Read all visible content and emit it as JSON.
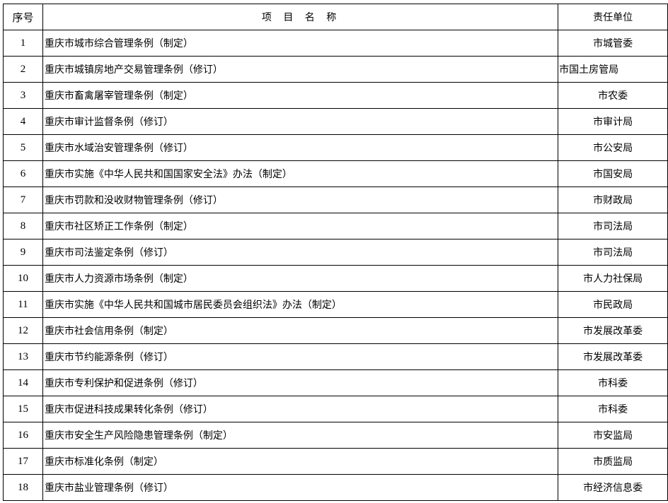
{
  "header": {
    "index": "序号",
    "name": "项 目 名 称",
    "unit": "责任单位"
  },
  "rows": [
    {
      "index": "1",
      "name": "重庆市城市综合管理条例（制定）",
      "unit": "市城管委"
    },
    {
      "index": "2",
      "name": "重庆市城镇房地产交易管理条例（修订）",
      "unit": "市国土房管局"
    },
    {
      "index": "3",
      "name": "重庆市畜禽屠宰管理条例（制定）",
      "unit": "市农委"
    },
    {
      "index": "4",
      "name": "重庆市审计监督条例（修订）",
      "unit": "市审计局"
    },
    {
      "index": "5",
      "name": "重庆市水域治安管理条例（修订）",
      "unit": "市公安局"
    },
    {
      "index": "6",
      "name": "重庆市实施《中华人民共和国国家安全法》办法（制定）",
      "unit": "市国安局"
    },
    {
      "index": "7",
      "name": "重庆市罚款和没收财物管理条例（修订）",
      "unit": "市财政局"
    },
    {
      "index": "8",
      "name": "重庆市社区矫正工作条例（制定）",
      "unit": "市司法局"
    },
    {
      "index": "9",
      "name": "重庆市司法鉴定条例（修订）",
      "unit": "市司法局"
    },
    {
      "index": "10",
      "name": "重庆市人力资源市场条例（制定）",
      "unit": "市人力社保局"
    },
    {
      "index": "11",
      "name": "重庆市实施《中华人民共和国城市居民委员会组织法》办法（制定）",
      "unit": "市民政局"
    },
    {
      "index": "12",
      "name": "重庆市社会信用条例（制定）",
      "unit": "市发展改革委"
    },
    {
      "index": "13",
      "name": "重庆市节约能源条例（修订）",
      "unit": "市发展改革委"
    },
    {
      "index": "14",
      "name": "重庆市专利保护和促进条例（修订）",
      "unit": "市科委"
    },
    {
      "index": "15",
      "name": "重庆市促进科技成果转化条例（修订）",
      "unit": "市科委"
    },
    {
      "index": "16",
      "name": "重庆市安全生产风险隐患管理条例（制定）",
      "unit": "市安监局"
    },
    {
      "index": "17",
      "name": "重庆市标准化条例（制定）",
      "unit": "市质监局"
    },
    {
      "index": "18",
      "name": "重庆市盐业管理条例（修订）",
      "unit": "市经济信息委"
    }
  ]
}
